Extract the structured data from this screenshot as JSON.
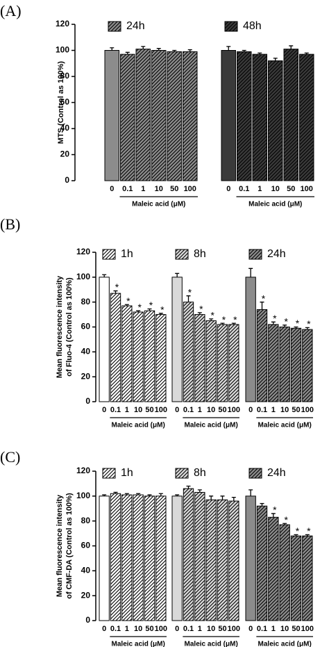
{
  "chart_data": [
    {
      "type": "bar",
      "panel": "(A)",
      "ylabel": [
        "MTS (Control as 100%)"
      ],
      "categories": [
        "0",
        "0.1",
        "1",
        "10",
        "50",
        "100"
      ],
      "xlabel": "Maleic acid (μM)",
      "ylim": [
        0,
        120
      ],
      "yticks": [
        0,
        20,
        40,
        60,
        80,
        100,
        120
      ],
      "series": [
        {
          "name": "24h",
          "color": "#8c8c8c",
          "values": [
            100,
            97,
            101,
            100,
            99,
            99
          ],
          "errors": [
            2,
            1.5,
            2,
            1.5,
            1,
            1.5
          ]
        },
        {
          "name": "48h",
          "color": "#3a3a3a",
          "values": [
            100,
            99,
            97,
            92,
            101,
            97
          ],
          "errors": [
            3,
            1,
            1,
            2,
            2.5,
            1
          ]
        }
      ]
    },
    {
      "type": "bar",
      "panel": "(B)",
      "ylabel": [
        "Mean fluorescence intensity",
        "of Fluo-4 (Control as 100%)"
      ],
      "categories": [
        "0",
        "0.1",
        "1",
        "10",
        "50",
        "100"
      ],
      "xlabel": "Maleic acid (μM)",
      "ylim": [
        0,
        120
      ],
      "yticks": [
        0,
        20,
        40,
        60,
        80,
        100,
        120
      ],
      "series": [
        {
          "name": "1h",
          "color": "#ffffff",
          "values": [
            100,
            87,
            77,
            72,
            73,
            70
          ],
          "errors": [
            2,
            2,
            1,
            1,
            1.5,
            1
          ],
          "markers": [
            null,
            "*",
            "*",
            "*",
            "*",
            "*"
          ]
        },
        {
          "name": "8h",
          "color": "#d9d9d9",
          "values": [
            100,
            80,
            70,
            65,
            62,
            62
          ],
          "errors": [
            3,
            5,
            1.5,
            1.5,
            1,
            1
          ],
          "markers": [
            null,
            "*",
            "*",
            "*",
            "*",
            "*"
          ]
        },
        {
          "name": "24h",
          "color": "#8c8c8c",
          "values": [
            100,
            74,
            62,
            60,
            59,
            58
          ],
          "errors": [
            7,
            6,
            2,
            1.5,
            1,
            1.5
          ],
          "markers": [
            null,
            "*",
            "*",
            "*",
            "*",
            "*"
          ]
        }
      ]
    },
    {
      "type": "bar",
      "panel": "(C)",
      "ylabel": [
        "Mean fluorescence intensity",
        "of CMF-DA (Control as 100%)"
      ],
      "categories": [
        "0",
        "0.1",
        "1",
        "10",
        "50",
        "100"
      ],
      "xlabel": "Maleic acid (μM)",
      "ylim": [
        0,
        120
      ],
      "yticks": [
        0,
        20,
        40,
        60,
        80,
        100,
        120
      ],
      "series": [
        {
          "name": "1h",
          "color": "#ffffff",
          "values": [
            100,
            102,
            101,
            101,
            100,
            100
          ],
          "errors": [
            1,
            1,
            1,
            1,
            1,
            2
          ]
        },
        {
          "name": "8h",
          "color": "#d9d9d9",
          "values": [
            100,
            106,
            103,
            97,
            97,
            96
          ],
          "errors": [
            1,
            2,
            2,
            3,
            3,
            3
          ]
        },
        {
          "name": "24h",
          "color": "#8c8c8c",
          "values": [
            100,
            92,
            83,
            77,
            68,
            68
          ],
          "errors": [
            5,
            2,
            3,
            1,
            1,
            1
          ],
          "markers": [
            null,
            null,
            "*",
            "*",
            "*",
            "*"
          ]
        }
      ]
    }
  ]
}
